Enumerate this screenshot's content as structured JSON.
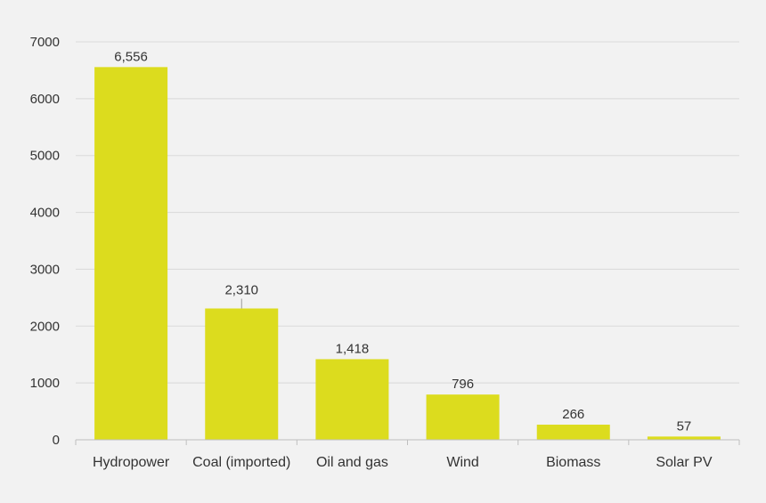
{
  "chart_data": {
    "type": "bar",
    "categories": [
      "Hydropower",
      "Coal (imported)",
      "Oil and gas",
      "Wind",
      "Biomass",
      "Solar PV"
    ],
    "values": [
      6556,
      2310,
      1418,
      796,
      266,
      57
    ],
    "data_labels": [
      "6,556",
      "2,310",
      "1,418",
      "796",
      "266",
      "57"
    ],
    "y_ticks": [
      0,
      1000,
      2000,
      3000,
      4000,
      5000,
      6000,
      7000
    ],
    "y_tick_labels": [
      "0",
      "1000",
      "2000",
      "3000",
      "4000",
      "5000",
      "6000",
      "7000"
    ],
    "ylim": [
      0,
      7000
    ],
    "title": "",
    "xlabel": "",
    "ylabel": "",
    "grid": true,
    "legend": "none"
  },
  "colors": {
    "bar": "#dcdc1e",
    "grid": "#d9d9d9",
    "axis": "#bfbfbf",
    "background": "#f2f2f2",
    "text": "#333333"
  }
}
